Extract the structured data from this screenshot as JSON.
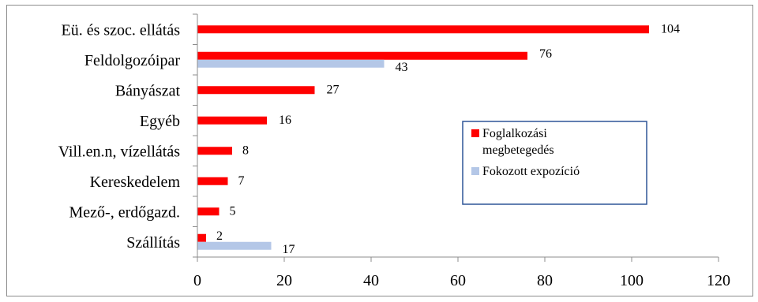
{
  "chart_data": {
    "type": "bar",
    "orientation": "horizontal",
    "categories": [
      "Eü. és szoc. ellátás",
      "Feldolgozóipar",
      "Bányászat",
      "Egyéb",
      "Vill.en.n, vízellátás",
      "Kereskedelem",
      "Mező-, erdőgazd.",
      "Szállítás"
    ],
    "series": [
      {
        "name": "Foglalkozási megbetegedés",
        "color": "#ff0000",
        "values": [
          104,
          76,
          27,
          16,
          8,
          7,
          5,
          2
        ]
      },
      {
        "name": "Fokozott expozíció",
        "color": "#b4c7e7",
        "values": [
          null,
          43,
          null,
          null,
          null,
          null,
          null,
          17
        ]
      }
    ],
    "legend": {
      "position": "right",
      "entries": [
        {
          "label_lines": [
            "Foglalkozási",
            "megbetegedés"
          ],
          "color": "#ff0000"
        },
        {
          "label_lines": [
            "Fokozott expozíció"
          ],
          "color": "#b4c7e7"
        }
      ]
    },
    "xlim": [
      0,
      120
    ],
    "xticks": [
      0,
      20,
      40,
      60,
      80,
      100,
      120
    ],
    "grid": false
  }
}
